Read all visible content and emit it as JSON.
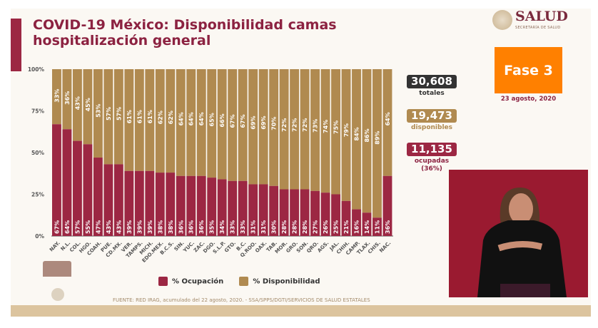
{
  "header": {
    "title": "COVID-19 México: Disponibilidad camas hospitalización general"
  },
  "logo": {
    "name": "SALUD",
    "subtitle": "SECRETARÍA DE SALUD"
  },
  "phase": {
    "label": "Fase 3",
    "date": "23 agosto, 2020",
    "color": "#ff8000"
  },
  "stats": [
    {
      "value": "30,608",
      "label": "totales",
      "color": "#333333"
    },
    {
      "value": "19,473",
      "label": "disponibles",
      "color": "#b08a50"
    },
    {
      "value": "11,135",
      "label": "ocupadas (36%)",
      "color": "#9c2743"
    }
  ],
  "legend": {
    "occupied": "% Ocupación",
    "available": "% Disponibilidad"
  },
  "source": "FUENTE: RED IRAG, acumulado del 22 agosto, 2020. -  SSA/SPPS/DGTI/SERVICIOS DE SALUD ESTATALES",
  "chart_data": {
    "type": "bar",
    "stacked": true,
    "categories": [
      "NAY.",
      "N.L.",
      "COL.",
      "HGO.",
      "COAH.",
      "PUE.",
      "CD.MX.",
      "VER.",
      "TAMPS.",
      "MICH.",
      "EDO.MEX.",
      "B.C.S.",
      "SIN.",
      "YUC.",
      "ZAC.",
      "DGO.",
      "S.L.P.",
      "GTO.",
      "B.C.",
      "Q.ROO.",
      "OAX.",
      "TAB.",
      "MOR.",
      "GRO.",
      "SON.",
      "QRO.",
      "AGS.",
      "JAL.",
      "CHIH.",
      "CAMP.",
      "TLAX.",
      "CHIS.",
      "NAC."
    ],
    "series": [
      {
        "name": "% Ocupación",
        "color": "#9c2743",
        "values": [
          67,
          64,
          57,
          55,
          47,
          43,
          43,
          39,
          39,
          39,
          38,
          38,
          36,
          36,
          36,
          35,
          34,
          33,
          33,
          31,
          31,
          30,
          28,
          28,
          28,
          27,
          26,
          25,
          21,
          16,
          14,
          11,
          36
        ]
      },
      {
        "name": "% Disponibilidad",
        "color": "#b08a50",
        "values": [
          33,
          36,
          43,
          45,
          53,
          57,
          57,
          61,
          61,
          61,
          62,
          62,
          64,
          64,
          64,
          65,
          66,
          67,
          67,
          69,
          69,
          70,
          72,
          72,
          72,
          73,
          74,
          75,
          79,
          84,
          86,
          89,
          64
        ]
      }
    ],
    "yticks": [
      "0%",
      "25%",
      "50%",
      "75%",
      "100%"
    ],
    "ylim": [
      0,
      100
    ]
  }
}
